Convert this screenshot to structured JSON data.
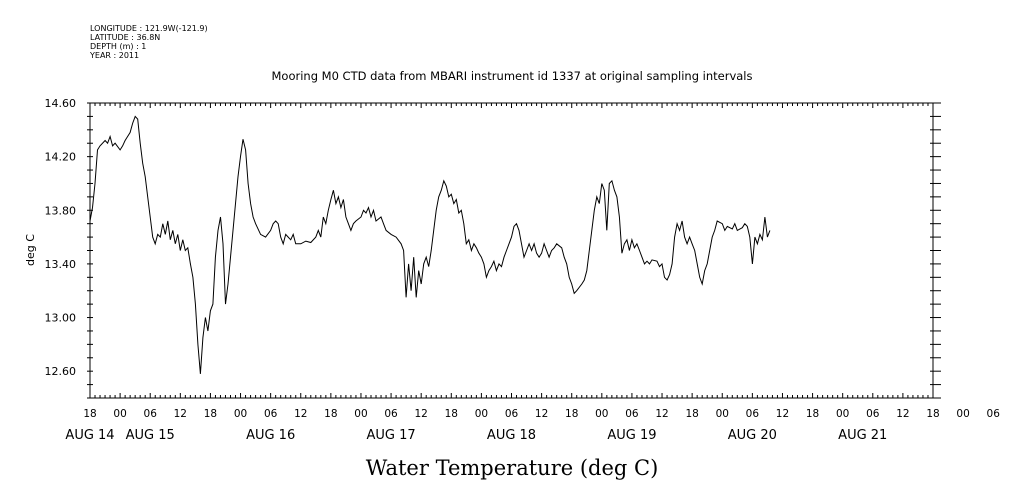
{
  "meta": {
    "longitude": "LONGITUDE : 121.9W(-121.9)",
    "latitude": "LATITUDE : 36.8N",
    "depth": "DEPTH (m) : 1",
    "year": "YEAR : 2011"
  },
  "chart_data": {
    "type": "line",
    "title": "Mooring M0 CTD data from MBARI instrument id 1337 at original sampling intervals",
    "xlabel": "Water Temperature (deg C)",
    "ylabel": "deg C",
    "x_range_hours": [
      0,
      168
    ],
    "x_start": "AUG 14 18:00",
    "ylim": [
      12.4,
      14.6
    ],
    "yticks": [
      12.6,
      13.0,
      13.4,
      13.8,
      14.2,
      14.6
    ],
    "ytick_labels": [
      "12.60",
      "13.00",
      "13.40",
      "13.80",
      "14.20",
      "14.60"
    ],
    "hour_labels": [
      "18",
      "00",
      "06",
      "12",
      "18",
      "00",
      "06",
      "12",
      "18",
      "00",
      "06",
      "12",
      "18",
      "00",
      "06",
      "12",
      "18",
      "00",
      "06",
      "12",
      "18",
      "00",
      "06",
      "12",
      "18",
      "00",
      "06",
      "12",
      "18",
      "00",
      "06",
      "12",
      "18"
    ],
    "date_labels": [
      {
        "label": "AUG 14",
        "hour": 0
      },
      {
        "label": "AUG 15",
        "hour": 12
      },
      {
        "label": "AUG 16",
        "hour": 36
      },
      {
        "label": "AUG 17",
        "hour": 60
      },
      {
        "label": "AUG 18",
        "hour": 84
      },
      {
        "label": "AUG 19",
        "hour": 108
      },
      {
        "label": "AUG 20",
        "hour": 132
      },
      {
        "label": "AUG 21",
        "hour": 154
      }
    ],
    "grid": false,
    "series": [
      {
        "points": [
          [
            0,
            13.72
          ],
          [
            0.5,
            13.82
          ],
          [
            1,
            14.0
          ],
          [
            1.5,
            14.25
          ],
          [
            2,
            14.28
          ],
          [
            3,
            14.32
          ],
          [
            3.5,
            14.3
          ],
          [
            4,
            14.35
          ],
          [
            4.5,
            14.28
          ],
          [
            5,
            14.3
          ],
          [
            6,
            14.25
          ],
          [
            6.5,
            14.28
          ],
          [
            7,
            14.32
          ],
          [
            7.5,
            14.35
          ],
          [
            8,
            14.38
          ],
          [
            8.5,
            14.45
          ],
          [
            9,
            14.5
          ],
          [
            9.5,
            14.48
          ],
          [
            10,
            14.3
          ],
          [
            10.5,
            14.15
          ],
          [
            11,
            14.05
          ],
          [
            11.5,
            13.9
          ],
          [
            12,
            13.75
          ],
          [
            12.5,
            13.6
          ],
          [
            13,
            13.55
          ],
          [
            13.5,
            13.62
          ],
          [
            14,
            13.6
          ],
          [
            14.5,
            13.7
          ],
          [
            15,
            13.62
          ],
          [
            15.5,
            13.72
          ],
          [
            16,
            13.58
          ],
          [
            16.5,
            13.65
          ],
          [
            17,
            13.55
          ],
          [
            17.5,
            13.62
          ],
          [
            18,
            13.5
          ],
          [
            18.5,
            13.58
          ],
          [
            19,
            13.5
          ],
          [
            19.5,
            13.52
          ],
          [
            20,
            13.4
          ],
          [
            20.5,
            13.3
          ],
          [
            21,
            13.1
          ],
          [
            21.5,
            12.8
          ],
          [
            22,
            12.58
          ],
          [
            22.5,
            12.85
          ],
          [
            23,
            13.0
          ],
          [
            23.5,
            12.9
          ],
          [
            24,
            13.05
          ],
          [
            24.5,
            13.1
          ],
          [
            25,
            13.45
          ],
          [
            25.5,
            13.65
          ],
          [
            26,
            13.75
          ],
          [
            26.5,
            13.55
          ],
          [
            27,
            13.1
          ],
          [
            27.5,
            13.25
          ],
          [
            28,
            13.45
          ],
          [
            28.5,
            13.65
          ],
          [
            29,
            13.85
          ],
          [
            29.5,
            14.05
          ],
          [
            30,
            14.2
          ],
          [
            30.5,
            14.33
          ],
          [
            31,
            14.25
          ],
          [
            31.5,
            14.0
          ],
          [
            32,
            13.85
          ],
          [
            32.5,
            13.75
          ],
          [
            33,
            13.7
          ],
          [
            34,
            13.62
          ],
          [
            35,
            13.6
          ],
          [
            36,
            13.65
          ],
          [
            36.5,
            13.7
          ],
          [
            37,
            13.72
          ],
          [
            37.5,
            13.7
          ],
          [
            38,
            13.6
          ],
          [
            38.5,
            13.55
          ],
          [
            39,
            13.62
          ],
          [
            39.5,
            13.6
          ],
          [
            40,
            13.58
          ],
          [
            40.5,
            13.62
          ],
          [
            41,
            13.55
          ],
          [
            42,
            13.55
          ],
          [
            43,
            13.57
          ],
          [
            44,
            13.56
          ],
          [
            45,
            13.6
          ],
          [
            45.5,
            13.65
          ],
          [
            46,
            13.6
          ],
          [
            46.5,
            13.75
          ],
          [
            47,
            13.7
          ],
          [
            47.5,
            13.8
          ],
          [
            48,
            13.88
          ],
          [
            48.5,
            13.95
          ],
          [
            49,
            13.85
          ],
          [
            49.5,
            13.9
          ],
          [
            50,
            13.82
          ],
          [
            50.5,
            13.88
          ],
          [
            51,
            13.75
          ],
          [
            51.5,
            13.7
          ],
          [
            52,
            13.65
          ],
          [
            52.5,
            13.7
          ],
          [
            53,
            13.72
          ],
          [
            54,
            13.75
          ],
          [
            54.5,
            13.8
          ],
          [
            55,
            13.78
          ],
          [
            55.5,
            13.82
          ],
          [
            56,
            13.75
          ],
          [
            56.5,
            13.8
          ],
          [
            57,
            13.72
          ],
          [
            58,
            13.75
          ],
          [
            58.5,
            13.7
          ],
          [
            59,
            13.65
          ],
          [
            60,
            13.62
          ],
          [
            61,
            13.6
          ],
          [
            62,
            13.55
          ],
          [
            62.5,
            13.5
          ],
          [
            63,
            13.15
          ],
          [
            63.5,
            13.4
          ],
          [
            64,
            13.2
          ],
          [
            64.5,
            13.45
          ],
          [
            65,
            13.15
          ],
          [
            65.5,
            13.35
          ],
          [
            66,
            13.25
          ],
          [
            66.5,
            13.4
          ],
          [
            67,
            13.45
          ],
          [
            67.5,
            13.38
          ],
          [
            68,
            13.5
          ],
          [
            68.5,
            13.65
          ],
          [
            69,
            13.8
          ],
          [
            69.5,
            13.9
          ],
          [
            70,
            13.95
          ],
          [
            70.5,
            14.02
          ],
          [
            71,
            13.98
          ],
          [
            71.5,
            13.9
          ],
          [
            72,
            13.92
          ],
          [
            72.5,
            13.85
          ],
          [
            73,
            13.88
          ],
          [
            73.5,
            13.78
          ],
          [
            74,
            13.8
          ],
          [
            74.5,
            13.7
          ],
          [
            75,
            13.55
          ],
          [
            75.5,
            13.58
          ],
          [
            76,
            13.5
          ],
          [
            76.5,
            13.55
          ],
          [
            77,
            13.52
          ],
          [
            77.5,
            13.48
          ],
          [
            78,
            13.45
          ],
          [
            78.5,
            13.4
          ],
          [
            79,
            13.3
          ],
          [
            79.5,
            13.35
          ],
          [
            80,
            13.38
          ],
          [
            80.5,
            13.42
          ],
          [
            81,
            13.35
          ],
          [
            81.5,
            13.4
          ],
          [
            82,
            13.38
          ],
          [
            82.5,
            13.45
          ],
          [
            83,
            13.5
          ],
          [
            83.5,
            13.55
          ],
          [
            84,
            13.6
          ],
          [
            84.5,
            13.68
          ],
          [
            85,
            13.7
          ],
          [
            85.5,
            13.65
          ],
          [
            86,
            13.55
          ],
          [
            86.5,
            13.45
          ],
          [
            87,
            13.5
          ],
          [
            87.5,
            13.55
          ],
          [
            88,
            13.5
          ],
          [
            88.5,
            13.55
          ],
          [
            89,
            13.48
          ],
          [
            89.5,
            13.45
          ],
          [
            90,
            13.48
          ],
          [
            90.5,
            13.55
          ],
          [
            91,
            13.5
          ],
          [
            91.5,
            13.45
          ],
          [
            92,
            13.5
          ],
          [
            92.5,
            13.52
          ],
          [
            93,
            13.55
          ],
          [
            94,
            13.52
          ],
          [
            94.5,
            13.45
          ],
          [
            95,
            13.4
          ],
          [
            95.5,
            13.3
          ],
          [
            96,
            13.25
          ],
          [
            96.5,
            13.18
          ],
          [
            97,
            13.2
          ],
          [
            98,
            13.25
          ],
          [
            98.5,
            13.28
          ],
          [
            99,
            13.35
          ],
          [
            99.5,
            13.5
          ],
          [
            100,
            13.65
          ],
          [
            100.5,
            13.8
          ],
          [
            101,
            13.9
          ],
          [
            101.5,
            13.85
          ],
          [
            102,
            14.0
          ],
          [
            102.5,
            13.95
          ],
          [
            103,
            13.65
          ],
          [
            103.5,
            14.0
          ],
          [
            104,
            14.02
          ],
          [
            104.5,
            13.95
          ],
          [
            105,
            13.9
          ],
          [
            105.5,
            13.75
          ],
          [
            106,
            13.48
          ],
          [
            106.5,
            13.55
          ],
          [
            107,
            13.58
          ],
          [
            107.5,
            13.5
          ],
          [
            108,
            13.58
          ],
          [
            108.5,
            13.52
          ],
          [
            109,
            13.55
          ],
          [
            109.5,
            13.5
          ],
          [
            110,
            13.45
          ],
          [
            110.5,
            13.4
          ],
          [
            111,
            13.42
          ],
          [
            111.5,
            13.4
          ],
          [
            112,
            13.43
          ],
          [
            113,
            13.42
          ],
          [
            113.5,
            13.38
          ],
          [
            114,
            13.4
          ],
          [
            114.5,
            13.3
          ],
          [
            115,
            13.28
          ],
          [
            115.5,
            13.32
          ],
          [
            116,
            13.4
          ],
          [
            116.5,
            13.6
          ],
          [
            117,
            13.7
          ],
          [
            117.5,
            13.65
          ],
          [
            118,
            13.72
          ],
          [
            118.5,
            13.6
          ],
          [
            119,
            13.55
          ],
          [
            119.5,
            13.6
          ],
          [
            120,
            13.55
          ],
          [
            120.5,
            13.5
          ],
          [
            121,
            13.4
          ],
          [
            121.5,
            13.3
          ],
          [
            122,
            13.25
          ],
          [
            122.5,
            13.35
          ],
          [
            123,
            13.4
          ],
          [
            123.5,
            13.5
          ],
          [
            124,
            13.6
          ],
          [
            124.5,
            13.65
          ],
          [
            125,
            13.72
          ],
          [
            126,
            13.7
          ],
          [
            126.5,
            13.65
          ],
          [
            127,
            13.68
          ],
          [
            128,
            13.66
          ],
          [
            128.5,
            13.7
          ],
          [
            129,
            13.65
          ],
          [
            130,
            13.67
          ],
          [
            130.5,
            13.7
          ],
          [
            131,
            13.68
          ],
          [
            131.5,
            13.6
          ],
          [
            132,
            13.4
          ],
          [
            132.5,
            13.6
          ],
          [
            133,
            13.55
          ],
          [
            133.5,
            13.62
          ],
          [
            134,
            13.58
          ],
          [
            134.5,
            13.75
          ],
          [
            135,
            13.6
          ],
          [
            135.5,
            13.65
          ]
        ]
      }
    ]
  }
}
